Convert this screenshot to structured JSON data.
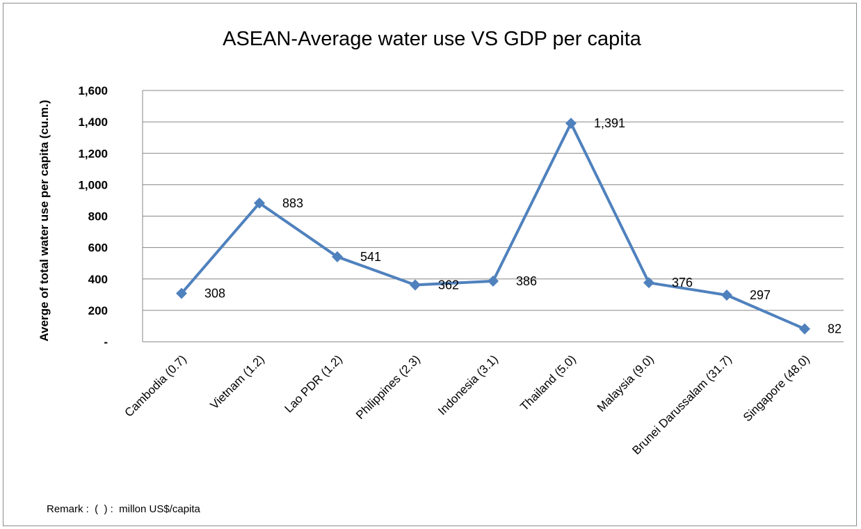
{
  "chart_data": {
    "type": "line",
    "title": "ASEAN-Average  water use VS GDP per capita",
    "ylabel": "Averge  of total water use per capita  (cu.m.)",
    "xlabel": "",
    "categories": [
      "Cambodia (0.7)",
      "Vietnam  (1.2)",
      "Lao PDR (1.2)",
      "Philippines (2.3)",
      "Indonesia (3.1)",
      "Thailand  (5.0)",
      "Malaysia (9.0)",
      "Brunei Darussalam (31.7)",
      "Singapore (48.0)"
    ],
    "series": [
      {
        "values": [
          308,
          883,
          541,
          362,
          386,
          1391,
          376,
          297,
          82
        ],
        "data_labels": [
          "308",
          "883",
          "541",
          "362",
          "386",
          "1,391",
          "376",
          "297",
          "82"
        ],
        "color": "#4f81bd"
      }
    ],
    "ylim": [
      0,
      1600
    ],
    "yticks": [
      0,
      200,
      400,
      600,
      800,
      1000,
      1200,
      1400,
      1600
    ],
    "ytick_labels": [
      "-",
      "200",
      "400",
      "600",
      "800",
      "1,000",
      "1,200",
      "1,400",
      "1,600"
    ],
    "grid": true,
    "legend": "none"
  },
  "remark": "Remark :  (  ) :  millon US$/capita",
  "colors": {
    "series": "#4f81bd",
    "grid": "#868686",
    "frame": "#8c8c8c"
  }
}
